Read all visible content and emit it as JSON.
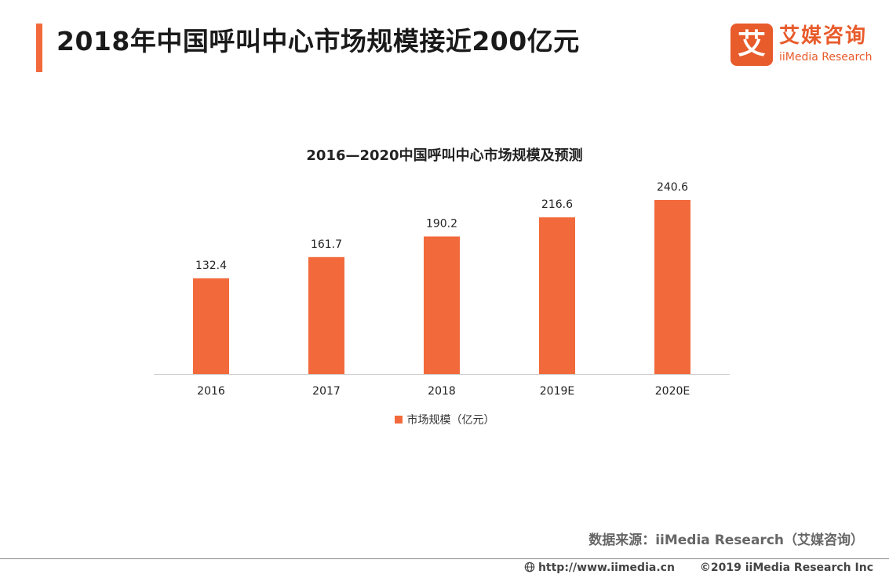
{
  "header": {
    "title": "2018年中国呼叫中心市场规模接近200亿元",
    "accent_color": "#f26a3b"
  },
  "brand": {
    "mark_glyph": "艾",
    "name_cn": "艾媒咨询",
    "name_en": "iiMedia Research",
    "color": "#e85b2b"
  },
  "chart_data": {
    "type": "bar",
    "title": "2016—2020中国呼叫中心市场规模及预测",
    "categories": [
      "2016",
      "2017",
      "2018",
      "2019E",
      "2020E"
    ],
    "series": [
      {
        "name": "市场规模（亿元）",
        "values": [
          132.4,
          161.7,
          190.2,
          216.6,
          240.6
        ],
        "color": "#f26a3b"
      }
    ],
    "data_labels": [
      "132.4",
      "161.7",
      "190.2",
      "216.6",
      "240.6"
    ],
    "ylim": [
      0,
      240.6
    ],
    "grid": false,
    "legend": "bottom"
  },
  "source": {
    "text": "数据来源：iiMedia Research（艾媒咨询）"
  },
  "footer": {
    "url": "http://www.iimedia.cn",
    "copyright": "©2019  iiMedia Research  Inc"
  }
}
